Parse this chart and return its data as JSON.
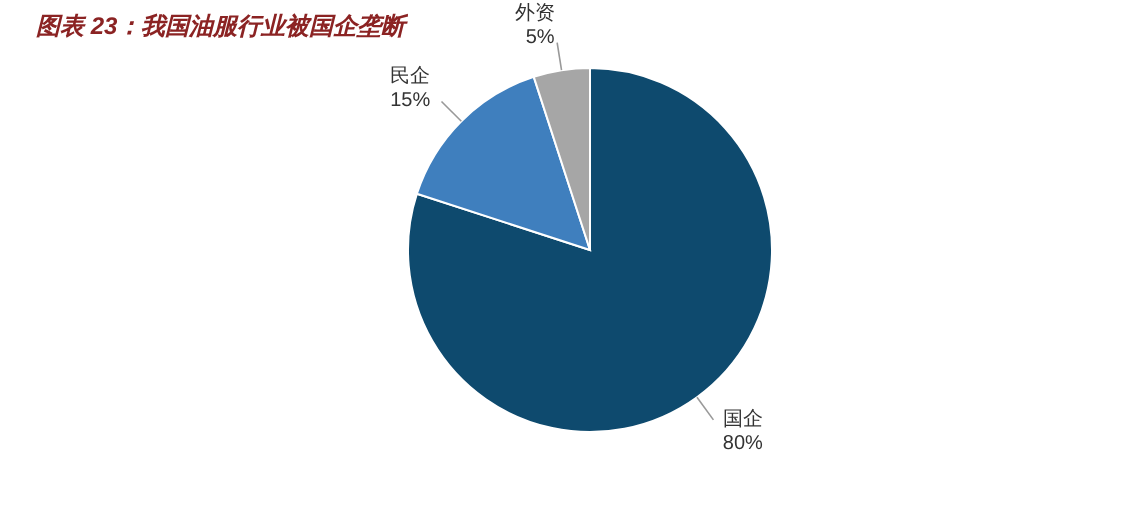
{
  "chart_data": {
    "type": "pie",
    "title": "图表 23：我国油服行业被国企垄断",
    "categories": [
      "国企",
      "民企",
      "外资"
    ],
    "values": [
      80,
      15,
      5
    ],
    "value_labels": [
      "80%",
      "15%",
      "5%"
    ],
    "colors": [
      "#0e4a6e",
      "#3f7fbe",
      "#a6a6a6"
    ]
  }
}
